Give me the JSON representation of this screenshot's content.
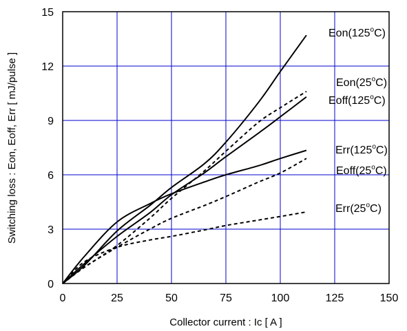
{
  "chart_data": {
    "type": "line",
    "xlabel": "Collector current : Ic [ A ]",
    "ylabel": "Switching loss : Eon, Eoff, Err [ mJ/pulse ]",
    "xlim": [
      0,
      150
    ],
    "ylim": [
      0,
      15
    ],
    "x_ticks": [
      "0",
      "25",
      "50",
      "75",
      "100",
      "125",
      "150"
    ],
    "y_ticks": [
      "0",
      "3",
      "6",
      "9",
      "12",
      "15"
    ],
    "grid": true,
    "grid_color": "#0000cc",
    "series": [
      {
        "name": "Eon(125°C)",
        "label_main": "Eon(125",
        "label_sup": "o",
        "label_tail": "C)",
        "style": "solid",
        "x": [
          0,
          10,
          25,
          40,
          50,
          65,
          75,
          90,
          100,
          112
        ],
        "y": [
          0,
          1.0,
          2.9,
          4.3,
          5.3,
          6.6,
          7.8,
          10.0,
          11.7,
          13.7
        ]
      },
      {
        "name": "Eoff(125°C)",
        "label_main": "Eoff(125",
        "label_sup": "o",
        "label_tail": "C)",
        "style": "solid",
        "x": [
          0,
          10,
          25,
          40,
          50,
          65,
          75,
          90,
          100,
          112
        ],
        "y": [
          0,
          1.1,
          2.6,
          3.9,
          4.9,
          6.1,
          7.0,
          8.3,
          9.2,
          10.3
        ]
      },
      {
        "name": "Err(125°C)",
        "label_main": "Err(125",
        "label_sup": "o",
        "label_tail": "C)",
        "style": "solid",
        "x": [
          0,
          10,
          25,
          40,
          50,
          65,
          75,
          90,
          100,
          112
        ],
        "y": [
          0,
          1.5,
          3.4,
          4.4,
          4.95,
          5.6,
          6.0,
          6.5,
          6.9,
          7.35
        ]
      },
      {
        "name": "Eon(25°C)",
        "label_main": "Eon(25",
        "label_sup": "o",
        "label_tail": "C)",
        "style": "dashed",
        "x": [
          0,
          10,
          25,
          40,
          50,
          65,
          75,
          90,
          100,
          112
        ],
        "y": [
          0,
          0.9,
          2.1,
          3.6,
          4.7,
          6.2,
          7.3,
          8.9,
          9.7,
          10.6
        ]
      },
      {
        "name": "Eoff(25°C)",
        "label_main": "Eoff(25",
        "label_sup": "o",
        "label_tail": "C)",
        "style": "dashed",
        "x": [
          0,
          10,
          25,
          40,
          50,
          65,
          75,
          90,
          100,
          112
        ],
        "y": [
          0,
          0.9,
          2.0,
          3.0,
          3.6,
          4.3,
          4.8,
          5.6,
          6.1,
          6.9
        ]
      },
      {
        "name": "Err(25°C)",
        "label_main": "Err(25",
        "label_sup": "o",
        "label_tail": "C)",
        "style": "dashed",
        "x": [
          0,
          10,
          25,
          40,
          50,
          65,
          75,
          90,
          100,
          112
        ],
        "y": [
          0,
          1.2,
          2.0,
          2.4,
          2.6,
          2.95,
          3.2,
          3.5,
          3.7,
          3.95
        ]
      }
    ]
  }
}
